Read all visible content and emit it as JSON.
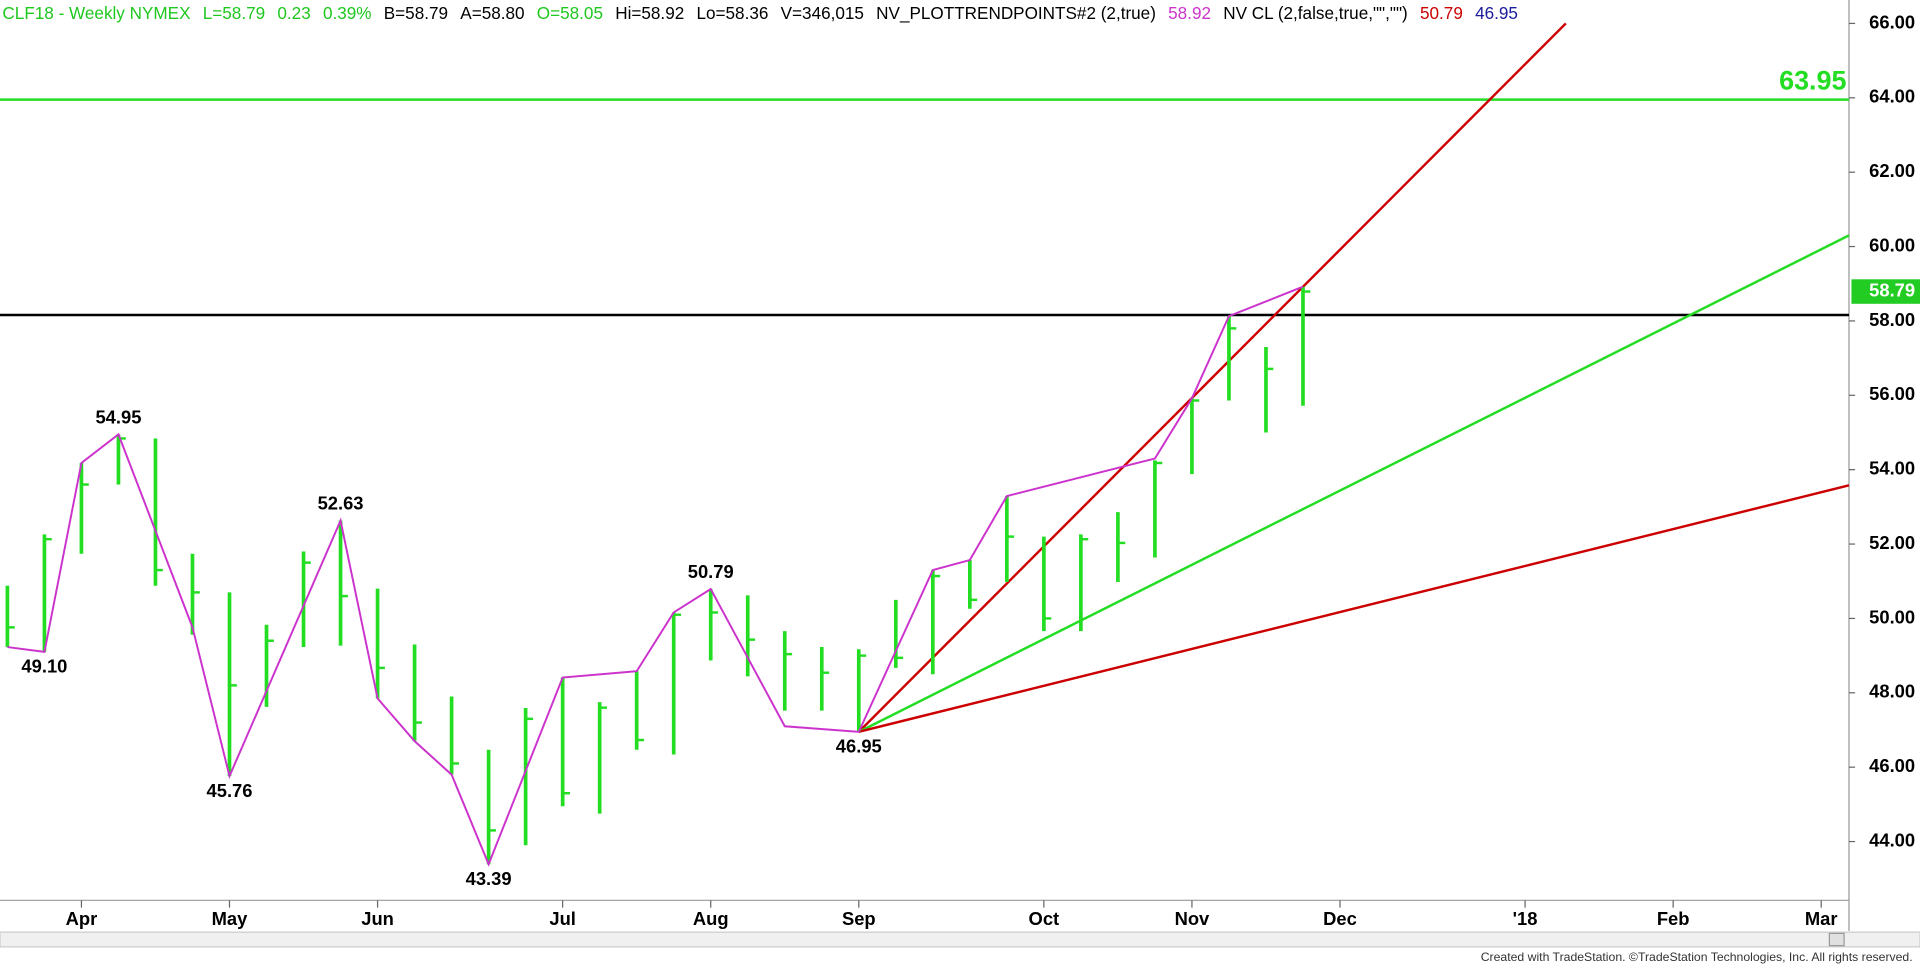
{
  "chart_data": {
    "type": "ohlc",
    "header": [
      {
        "text": "CLF18 - Weekly  NYMEX",
        "color": "#1ec81e"
      },
      {
        "text": "L=58.79",
        "color": "#1ec81e"
      },
      {
        "text": "0.23",
        "color": "#1ec81e"
      },
      {
        "text": "0.39%",
        "color": "#1ec81e"
      },
      {
        "text": "B=58.79",
        "color": "#000000"
      },
      {
        "text": "A=58.80",
        "color": "#000000"
      },
      {
        "text": "O=58.05",
        "color": "#1ec81e"
      },
      {
        "text": "Hi=58.92",
        "color": "#000000"
      },
      {
        "text": "Lo=58.36",
        "color": "#000000"
      },
      {
        "text": "V=346,015",
        "color": "#000000"
      },
      {
        "text": "NV_PLOTTRENDPOINTS#2 (2,true)",
        "color": "#000000"
      },
      {
        "text": "58.92",
        "color": "#cc33cc"
      },
      {
        "text": "NV CL (2,false,true,\"\",\"\")",
        "color": "#000000"
      },
      {
        "text": "50.79",
        "color": "#cc0000"
      },
      {
        "text": "46.95",
        "color": "#1a1a9c"
      }
    ],
    "xlim": [
      -0.2,
      49.75
    ],
    "ylim": [
      42.42,
      66.63
    ],
    "xticks": [
      {
        "value": 2,
        "label": "Apr"
      },
      {
        "value": 6,
        "label": "May"
      },
      {
        "value": 10,
        "label": "Jun"
      },
      {
        "value": 15,
        "label": "Jul"
      },
      {
        "value": 19,
        "label": "Aug"
      },
      {
        "value": 23,
        "label": "Sep"
      },
      {
        "value": 28,
        "label": "Oct"
      },
      {
        "value": 32,
        "label": "Nov"
      },
      {
        "value": 36,
        "label": "Dec"
      },
      {
        "value": 41,
        "label": "'18"
      },
      {
        "value": 45,
        "label": "Feb"
      },
      {
        "value": 49,
        "label": "Mar"
      }
    ],
    "yticks": [
      {
        "value": 44,
        "label": "44.00"
      },
      {
        "value": 46,
        "label": "46.00"
      },
      {
        "value": 48,
        "label": "48.00"
      },
      {
        "value": 50,
        "label": "50.00"
      },
      {
        "value": 52,
        "label": "52.00"
      },
      {
        "value": 54,
        "label": "54.00"
      },
      {
        "value": 56,
        "label": "56.00"
      },
      {
        "value": 58,
        "label": "58.00"
      },
      {
        "value": 60,
        "label": "60.00"
      },
      {
        "value": 62,
        "label": "62.00"
      },
      {
        "value": 64,
        "label": "64.00"
      },
      {
        "value": 66,
        "label": "66.00"
      }
    ],
    "bars": {
      "color": "#22dd22",
      "x": [
        0,
        1,
        2,
        3,
        4,
        5,
        6,
        7,
        8,
        9,
        10,
        11,
        12,
        13,
        14,
        15,
        16,
        17,
        18,
        19,
        20,
        21,
        22,
        23,
        24,
        25,
        26,
        27,
        28,
        29,
        30,
        31,
        32,
        33,
        34,
        35
      ],
      "high": [
        50.88,
        52.26,
        54.18,
        54.95,
        54.84,
        51.74,
        50.7,
        49.83,
        51.8,
        52.63,
        50.8,
        49.3,
        47.9,
        46.47,
        47.59,
        48.41,
        47.75,
        48.58,
        50.16,
        50.79,
        50.62,
        49.66,
        49.23,
        49.17,
        50.5,
        51.3,
        51.57,
        53.29,
        52.2,
        52.26,
        52.86,
        54.25,
        55.92,
        58.13,
        57.3,
        58.92
      ],
      "low": [
        49.23,
        49.1,
        51.74,
        53.6,
        50.88,
        49.56,
        45.76,
        47.62,
        49.23,
        49.27,
        47.85,
        46.7,
        45.8,
        43.39,
        43.9,
        44.95,
        44.75,
        46.47,
        46.34,
        48.87,
        48.44,
        47.52,
        47.52,
        46.95,
        48.67,
        48.5,
        50.26,
        50.98,
        49.66,
        49.66,
        50.98,
        51.64,
        53.88,
        55.86,
        55.0,
        55.72
      ],
      "close": [
        49.76,
        52.13,
        53.6,
        54.84,
        51.3,
        50.7,
        48.2,
        49.4,
        51.5,
        50.6,
        48.67,
        47.2,
        46.1,
        44.3,
        47.3,
        45.3,
        47.6,
        46.73,
        50.1,
        50.16,
        49.43,
        49.04,
        48.54,
        49.0,
        48.94,
        51.14,
        50.5,
        52.2,
        50.0,
        52.13,
        52.03,
        54.18,
        55.86,
        57.8,
        56.71,
        58.79
      ]
    },
    "trend_points": {
      "color": "#cc33cc",
      "x": [
        0,
        1,
        2,
        3,
        5,
        6,
        9,
        10,
        11,
        12,
        13,
        15,
        17,
        18,
        19,
        21,
        23,
        25,
        26,
        27,
        31,
        32,
        33,
        35
      ],
      "values": [
        49.23,
        49.1,
        54.18,
        54.95,
        49.76,
        45.76,
        52.63,
        47.85,
        46.7,
        45.8,
        43.39,
        48.41,
        48.58,
        50.16,
        50.79,
        47.1,
        46.95,
        51.3,
        51.57,
        53.29,
        54.3,
        55.92,
        58.13,
        58.92
      ]
    },
    "swing_labels": [
      {
        "x": 1,
        "value": 49.1,
        "label": "49.10",
        "position": "below"
      },
      {
        "x": 3,
        "value": 54.95,
        "label": "54.95",
        "position": "above"
      },
      {
        "x": 6,
        "value": 45.76,
        "label": "45.76",
        "position": "below"
      },
      {
        "x": 9,
        "value": 52.63,
        "label": "52.63",
        "position": "above"
      },
      {
        "x": 13,
        "value": 43.39,
        "label": "43.39",
        "position": "below"
      },
      {
        "x": 19,
        "value": 50.79,
        "label": "50.79",
        "position": "above"
      },
      {
        "x": 23,
        "value": 46.95,
        "label": "46.95",
        "position": "below"
      }
    ],
    "lines": [
      {
        "x": [
          23,
          42.1
        ],
        "values": [
          46.95,
          66
        ],
        "color": "#cc0000"
      },
      {
        "x": [
          23,
          49.75
        ],
        "values": [
          46.95,
          60.3
        ],
        "color": "#22dd22"
      },
      {
        "x": [
          23,
          49.75
        ],
        "values": [
          46.95,
          53.58
        ],
        "color": "#cc0000"
      }
    ],
    "levels": [
      {
        "value": 63.95,
        "label": "63.95",
        "color": "#22dd22"
      },
      {
        "value": 58.16,
        "color": "#000000"
      }
    ],
    "last_price": {
      "value": 58.79,
      "label": "58.79",
      "color": "#22cc22"
    },
    "footer": "Created with TradeStation. ©TradeStation Technologies, Inc. All rights reserved."
  }
}
